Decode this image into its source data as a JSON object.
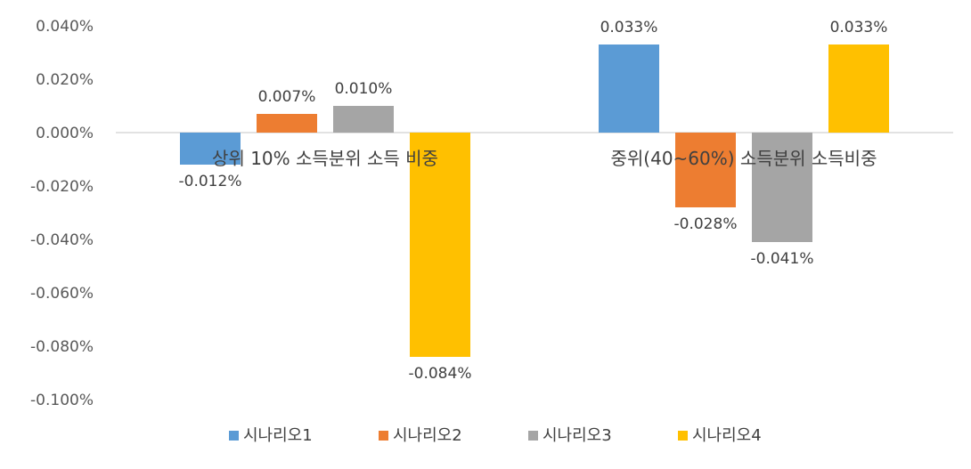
{
  "chart_data": {
    "type": "bar",
    "categories": [
      "상위 10% 소득분위 소득 비중",
      "중위(40~60%) 소득분위 소득비중"
    ],
    "series": [
      {
        "name": "시나리오1",
        "values": [
          -0.012,
          0.033
        ],
        "labels": [
          "-0.012%",
          "0.033%"
        ],
        "color": "#5B9BD5"
      },
      {
        "name": "시나리오2",
        "values": [
          0.007,
          -0.028
        ],
        "labels": [
          "0.007%",
          "-0.028%"
        ],
        "color": "#ED7D31"
      },
      {
        "name": "시나리오3",
        "values": [
          0.01,
          -0.041
        ],
        "labels": [
          "0.010%",
          "-0.041%"
        ],
        "color": "#A5A5A5"
      },
      {
        "name": "시나리오4",
        "values": [
          -0.084,
          0.033
        ],
        "labels": [
          "-0.084%",
          "0.033%"
        ],
        "color": "#FFC000"
      }
    ],
    "y_ticks": [
      "0.040%",
      "0.020%",
      "0.000%",
      "-0.020%",
      "-0.040%",
      "-0.060%",
      "-0.080%",
      "-0.100%"
    ],
    "y_tick_values": [
      0.04,
      0.02,
      0.0,
      -0.02,
      -0.04,
      -0.06,
      -0.08,
      -0.1
    ],
    "ylim": [
      -0.1,
      0.04
    ],
    "xlabel": "",
    "ylabel": "",
    "title": "",
    "grid": false,
    "legend_position": "bottom"
  }
}
